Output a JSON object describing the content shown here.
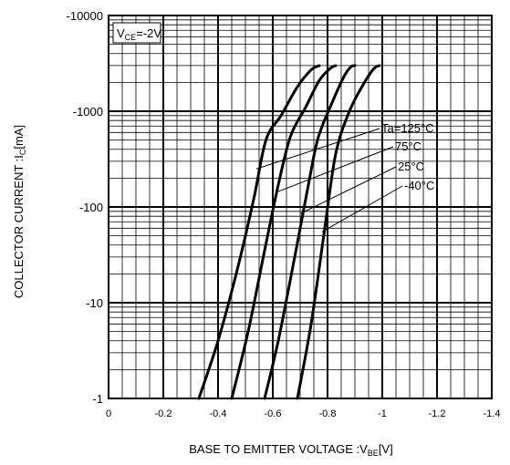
{
  "chart_data": {
    "type": "line",
    "x_axis": {
      "label": "BASE TO EMITTER VOLTAGE :V",
      "label_sub": "BE",
      "label_unit": "[V]",
      "range": [
        0,
        -1.4
      ],
      "ticks": [
        0,
        -0.2,
        -0.4,
        -0.6,
        -0.8,
        -1,
        -1.2,
        -1.4
      ],
      "tick_labels": [
        "0",
        "-0.2",
        "-0.4",
        "-0.6",
        "-0.8",
        "-1",
        "-1.2",
        "-1.4"
      ]
    },
    "y_axis": {
      "label": "COLLECTOR CURRENT :I",
      "label_sub": "C",
      "label_unit": "[mA]",
      "scale": "log",
      "range": [
        -1,
        -10000
      ],
      "ticks": [
        -1,
        -10,
        -100,
        -1000,
        -10000
      ],
      "tick_labels": [
        "-1",
        "-10",
        "-100",
        "-1000",
        "-10000"
      ]
    },
    "grid": true,
    "condition": {
      "main": "V",
      "sub": "CE",
      "rest": "=-2V"
    },
    "series": [
      {
        "name": "Ta=125°C",
        "points": [
          [
            -0.33,
            -1
          ],
          [
            -0.4,
            -4
          ],
          [
            -0.47,
            -22
          ],
          [
            -0.53,
            -120
          ],
          [
            -0.575,
            -500
          ],
          [
            -0.63,
            -900
          ],
          [
            -0.69,
            -1800
          ],
          [
            -0.74,
            -2700
          ],
          [
            -0.77,
            -3000
          ]
        ]
      },
      {
        "name": "75°C",
        "points": [
          [
            -0.45,
            -1
          ],
          [
            -0.51,
            -5
          ],
          [
            -0.57,
            -35
          ],
          [
            -0.62,
            -170
          ],
          [
            -0.665,
            -550
          ],
          [
            -0.72,
            -1100
          ],
          [
            -0.77,
            -2100
          ],
          [
            -0.81,
            -2800
          ],
          [
            -0.83,
            -3000
          ]
        ]
      },
      {
        "name": "25°C",
        "points": [
          [
            -0.57,
            -1
          ],
          [
            -0.62,
            -4
          ],
          [
            -0.68,
            -30
          ],
          [
            -0.73,
            -170
          ],
          [
            -0.765,
            -520
          ],
          [
            -0.815,
            -1200
          ],
          [
            -0.86,
            -2300
          ],
          [
            -0.885,
            -2900
          ],
          [
            -0.9,
            -3000
          ]
        ]
      },
      {
        "name": "-40°C",
        "points": [
          [
            -0.69,
            -1
          ],
          [
            -0.74,
            -6
          ],
          [
            -0.79,
            -60
          ],
          [
            -0.83,
            -360
          ],
          [
            -0.88,
            -1000
          ],
          [
            -0.935,
            -2000
          ],
          [
            -0.97,
            -2800
          ],
          [
            -0.99,
            -3000
          ]
        ]
      }
    ]
  }
}
